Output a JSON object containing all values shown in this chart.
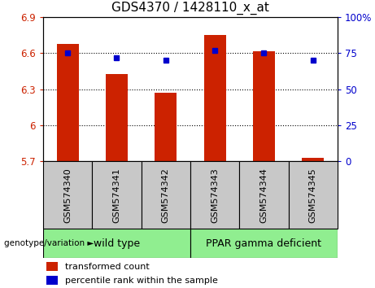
{
  "title": "GDS4370 / 1428110_x_at",
  "samples": [
    "GSM574340",
    "GSM574341",
    "GSM574342",
    "GSM574343",
    "GSM574344",
    "GSM574345"
  ],
  "bar_values": [
    6.68,
    6.43,
    6.27,
    6.75,
    6.62,
    5.73
  ],
  "dot_values": [
    75,
    72,
    70,
    77,
    75,
    70
  ],
  "ylim_left": [
    5.7,
    6.9
  ],
  "ylim_right": [
    0,
    100
  ],
  "yticks_left": [
    5.7,
    6.0,
    6.3,
    6.6,
    6.9
  ],
  "ytick_labels_left": [
    "5.7",
    "6",
    "6.3",
    "6.6",
    "6.9"
  ],
  "yticks_right": [
    0,
    25,
    50,
    75,
    100
  ],
  "ytick_labels_right": [
    "0",
    "25",
    "50",
    "75",
    "100%"
  ],
  "hlines": [
    6.0,
    6.3,
    6.6
  ],
  "bar_color": "#cc2200",
  "dot_color": "#0000cc",
  "bar_base": 5.7,
  "group1_label": "wild type",
  "group2_label": "PPAR gamma deficient",
  "group1_indices": [
    0,
    1,
    2
  ],
  "group2_indices": [
    3,
    4,
    5
  ],
  "genotype_label": "genotype/variation",
  "legend1": "transformed count",
  "legend2": "percentile rank within the sample",
  "group_bg_color": "#90EE90",
  "tick_bg_color": "#c8c8c8",
  "ax_bg_color": "#ffffff",
  "title_fontsize": 11,
  "tick_fontsize": 8.5,
  "label_fontsize": 8,
  "group_fontsize": 9
}
